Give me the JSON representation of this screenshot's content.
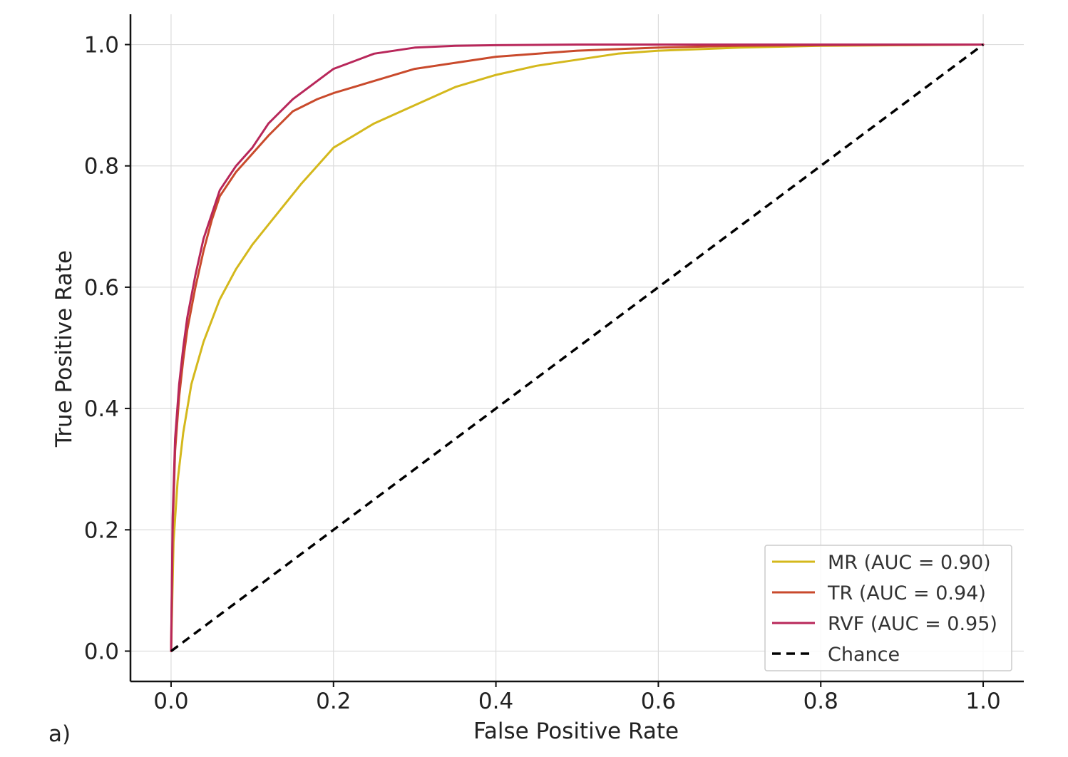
{
  "panel_label": "a)",
  "chart_data": {
    "type": "line",
    "title": "",
    "xlabel": "False Positive Rate",
    "ylabel": "True Positive Rate",
    "xlim": [
      -0.05,
      1.05
    ],
    "ylim": [
      -0.05,
      1.05
    ],
    "xticks": [
      0.0,
      0.2,
      0.4,
      0.6,
      0.8,
      1.0
    ],
    "yticks": [
      0.0,
      0.2,
      0.4,
      0.6,
      0.8,
      1.0
    ],
    "xtick_labels": [
      "0.0",
      "0.2",
      "0.4",
      "0.6",
      "0.8",
      "1.0"
    ],
    "ytick_labels": [
      "0.0",
      "0.2",
      "0.4",
      "0.6",
      "0.8",
      "1.0"
    ],
    "grid": true,
    "legend_position": "bottom-right",
    "series": [
      {
        "name": "MR (AUC = 0.90)",
        "color": "#d4b81c",
        "style": "solid",
        "x": [
          0.0,
          0.003,
          0.008,
          0.015,
          0.025,
          0.04,
          0.06,
          0.08,
          0.1,
          0.13,
          0.16,
          0.2,
          0.25,
          0.3,
          0.35,
          0.4,
          0.45,
          0.5,
          0.55,
          0.6,
          0.7,
          0.8,
          0.9,
          1.0
        ],
        "y": [
          0.0,
          0.18,
          0.28,
          0.36,
          0.44,
          0.51,
          0.58,
          0.63,
          0.67,
          0.72,
          0.77,
          0.83,
          0.87,
          0.9,
          0.93,
          0.95,
          0.965,
          0.975,
          0.985,
          0.99,
          0.995,
          0.998,
          0.999,
          1.0
        ]
      },
      {
        "name": "TR (AUC = 0.94)",
        "color": "#c94a2c",
        "style": "solid",
        "x": [
          0.0,
          0.002,
          0.005,
          0.01,
          0.015,
          0.02,
          0.03,
          0.04,
          0.05,
          0.06,
          0.08,
          0.1,
          0.12,
          0.15,
          0.18,
          0.2,
          0.25,
          0.3,
          0.35,
          0.4,
          0.5,
          0.6,
          0.7,
          0.8,
          1.0
        ],
        "y": [
          0.0,
          0.2,
          0.33,
          0.42,
          0.48,
          0.53,
          0.6,
          0.66,
          0.71,
          0.75,
          0.79,
          0.82,
          0.85,
          0.89,
          0.91,
          0.92,
          0.94,
          0.96,
          0.97,
          0.98,
          0.99,
          0.995,
          0.998,
          0.999,
          1.0
        ]
      },
      {
        "name": "RVF (AUC = 0.95)",
        "color": "#b8275a",
        "style": "solid",
        "x": [
          0.0,
          0.002,
          0.005,
          0.01,
          0.015,
          0.02,
          0.03,
          0.04,
          0.05,
          0.06,
          0.08,
          0.1,
          0.12,
          0.15,
          0.18,
          0.2,
          0.22,
          0.25,
          0.3,
          0.35,
          0.4,
          0.5,
          0.6,
          0.8,
          1.0
        ],
        "y": [
          0.0,
          0.22,
          0.35,
          0.44,
          0.5,
          0.55,
          0.62,
          0.68,
          0.72,
          0.76,
          0.8,
          0.83,
          0.87,
          0.91,
          0.94,
          0.96,
          0.97,
          0.985,
          0.995,
          0.998,
          0.999,
          1.0,
          1.0,
          1.0,
          1.0
        ]
      },
      {
        "name": "Chance",
        "color": "#000000",
        "style": "dashed",
        "x": [
          0.0,
          1.0
        ],
        "y": [
          0.0,
          1.0
        ]
      }
    ]
  }
}
